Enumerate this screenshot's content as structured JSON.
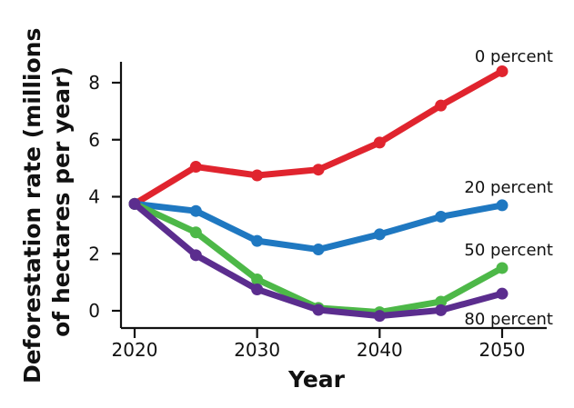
{
  "chart_data": {
    "type": "line",
    "xlabel": "Year",
    "ylabel": "Deforestation rate (millions of hectares per year)",
    "ylabel_lines": [
      "Deforestation rate (millions",
      "of hectares per year)"
    ],
    "x": [
      2020,
      2025,
      2030,
      2035,
      2040,
      2045,
      2050
    ],
    "xticks": [
      "2020",
      "2030",
      "2040",
      "2050"
    ],
    "yticks": [
      "0",
      "2",
      "4",
      "6",
      "8"
    ],
    "xlim": [
      2020,
      2050
    ],
    "ylim": [
      0,
      8
    ],
    "grid": false,
    "series": [
      {
        "name": "0 percent",
        "color": "#e0242e",
        "values": [
          3.75,
          5.05,
          4.75,
          4.95,
          5.9,
          7.2,
          8.4
        ]
      },
      {
        "name": "20 percent",
        "color": "#1f78c1",
        "values": [
          3.75,
          3.5,
          2.45,
          2.15,
          2.68,
          3.3,
          3.7
        ]
      },
      {
        "name": "50 percent",
        "color": "#4db848",
        "values": [
          3.75,
          2.75,
          1.1,
          0.1,
          -0.05,
          0.32,
          1.5
        ]
      },
      {
        "name": "80 percent",
        "color": "#5b2d8e",
        "values": [
          3.75,
          1.95,
          0.75,
          0.03,
          -0.18,
          0.02,
          0.6
        ]
      }
    ]
  }
}
